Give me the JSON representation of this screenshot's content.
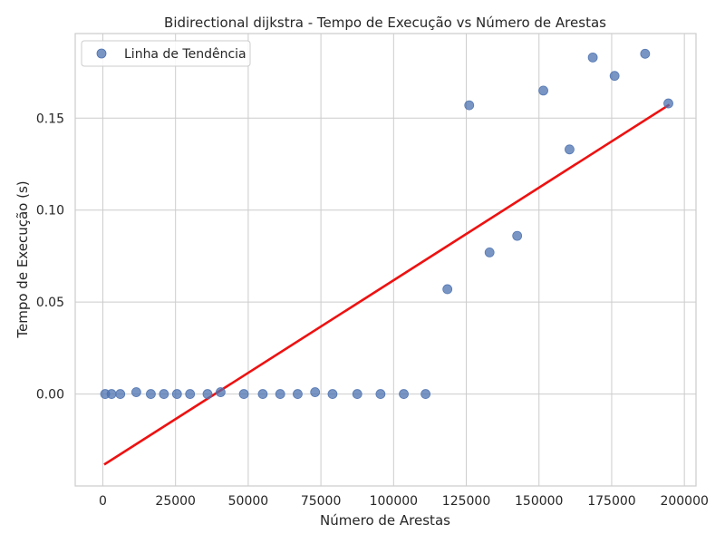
{
  "chart_data": {
    "type": "scatter",
    "title": "Bidirectional dijkstra - Tempo de Execução vs Número de Arestas",
    "xlabel": "Número de Arestas",
    "ylabel": "Tempo de Execução (s)",
    "xlim": [
      -9500,
      204000
    ],
    "ylim": [
      -0.05,
      0.196
    ],
    "xticks": [
      0,
      25000,
      50000,
      75000,
      100000,
      125000,
      150000,
      175000,
      200000
    ],
    "xtick_labels": [
      "0",
      "25000",
      "50000",
      "75000",
      "100000",
      "125000",
      "150000",
      "175000",
      "200000"
    ],
    "yticks": [
      0.0,
      0.05,
      0.1,
      0.15
    ],
    "ytick_labels": [
      "0.00",
      "0.05",
      "0.10",
      "0.15"
    ],
    "grid": true,
    "legend_position": "top-left",
    "legend_label": "Linha de Tendência",
    "point_color": "#4c72b0",
    "line_color": "#ee1111",
    "series": [
      {
        "name": "Linha de Tendência",
        "type": "scatter",
        "x": [
          800,
          3000,
          6000,
          11500,
          16500,
          21000,
          25500,
          30000,
          36000,
          40500,
          48500,
          55000,
          61000,
          67000,
          73000,
          79000,
          87500,
          95500,
          103500,
          111000,
          118500,
          126000,
          133000,
          142500,
          151500,
          160500,
          168500,
          176000,
          186500,
          194500
        ],
        "y": [
          0.0,
          0.0,
          0.0,
          0.001,
          0.0,
          0.0,
          0.0,
          0.0,
          0.0,
          0.001,
          0.0,
          0.0,
          0.0,
          0.0,
          0.001,
          0.0,
          0.0,
          0.0,
          0.0,
          0.0,
          0.057,
          0.157,
          0.077,
          0.086,
          0.165,
          0.133,
          0.183,
          0.173,
          0.185,
          0.158
        ]
      },
      {
        "type": "line",
        "x": [
          800,
          194500
        ],
        "y": [
          -0.038,
          0.157
        ]
      }
    ]
  }
}
